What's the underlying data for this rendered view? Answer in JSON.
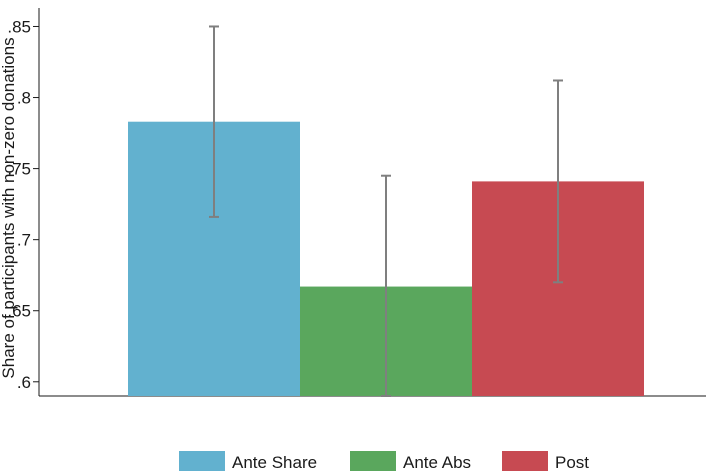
{
  "chart_data": {
    "type": "bar",
    "ylabel": "Share of participants with non-zero donations",
    "xlabel": "",
    "ylim": [
      0.59,
      0.863
    ],
    "yticks": [
      {
        "value": 0.6,
        "label": ".6"
      },
      {
        "value": 0.65,
        "label": ".65"
      },
      {
        "value": 0.7,
        "label": ".7"
      },
      {
        "value": 0.75,
        "label": ".75"
      },
      {
        "value": 0.8,
        "label": ".8"
      },
      {
        "value": 0.85,
        "label": ".85"
      }
    ],
    "grid": false,
    "legend_position": "bottom",
    "series": [
      {
        "name": "Ante Share",
        "value": 0.783,
        "ci_low": 0.716,
        "ci_high": 0.85,
        "color": "#62b1cf",
        "icon": "legend-swatch-ante-share"
      },
      {
        "name": "Ante Abs",
        "value": 0.667,
        "ci_low": 0.59,
        "ci_high": 0.745,
        "color": "#5aa75d",
        "icon": "legend-swatch-ante-abs"
      },
      {
        "name": "Post",
        "value": 0.741,
        "ci_low": 0.67,
        "ci_high": 0.812,
        "color": "#c74a52",
        "icon": "legend-swatch-post"
      }
    ],
    "errorbar_color": "#7f7f7f"
  }
}
